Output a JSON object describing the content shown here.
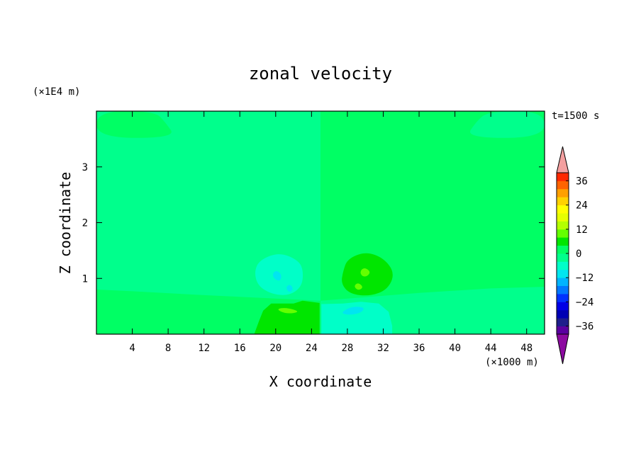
{
  "chart_data": {
    "type": "heatmap",
    "title": "zonal velocity",
    "xlabel": "X coordinate",
    "ylabel": "Z coordinate",
    "x_unit": "(×1000 m)",
    "y_unit": "(×1E4 m)",
    "time_label": "t=1500 s",
    "xlim": [
      0,
      50
    ],
    "ylim": [
      0,
      4
    ],
    "x_ticks": [
      4,
      8,
      12,
      16,
      20,
      24,
      28,
      32,
      36,
      40,
      44,
      48
    ],
    "y_ticks": [
      1,
      2,
      3
    ],
    "colorbar": {
      "tick_values": [
        36,
        24,
        12,
        0,
        -12,
        -24,
        -36
      ],
      "tick_labels": [
        "36",
        "24",
        "12",
        "0",
        "−12",
        "−24",
        "−36"
      ],
      "levels": [
        -40,
        -36,
        -32,
        -28,
        -24,
        -20,
        -16,
        -12,
        -8,
        -4,
        0,
        4,
        8,
        12,
        16,
        20,
        24,
        28,
        32,
        36,
        40
      ],
      "colors": [
        "#5a00a0",
        "#1e1e8c",
        "#0000b4",
        "#0000e6",
        "#0032ff",
        "#0078ff",
        "#00b4ff",
        "#00e6f0",
        "#00ffc8",
        "#00ff8c",
        "#00ff64",
        "#00e600",
        "#64ff00",
        "#b4ff00",
        "#e6ff00",
        "#ffff00",
        "#ffd200",
        "#ffa000",
        "#ff6400",
        "#ff2800"
      ],
      "under_color": "#8c0aa0",
      "over_color": "#f4a0a0"
    },
    "field": [
      {
        "region": "background right half, X 25-50",
        "value_range": [
          0,
          4
        ]
      },
      {
        "region": "background left half, X 0-25",
        "value_range": [
          -4,
          0
        ]
      },
      {
        "region": "lower layer, X 0-25, Z below ~0.8",
        "value_range": [
          0,
          4
        ]
      },
      {
        "region": "lower layer, X 25-50, Z below ~0.8",
        "value_range": [
          -4,
          0
        ]
      },
      {
        "region": "top band, X 0-25, Z above ~3.5",
        "value_range": [
          0,
          4
        ]
      },
      {
        "region": "top band, X 25-50, Z above ~3.5",
        "value_range": [
          -4,
          0
        ]
      },
      {
        "region": "upper-level vortex west, X ~20, Z ~1.1",
        "value_range": [
          -8,
          -4
        ],
        "core": [
          -12,
          -8
        ]
      },
      {
        "region": "upper-level vortex east, X ~30, Z ~1.1",
        "value_range": [
          4,
          8
        ],
        "core": [
          8,
          12
        ]
      },
      {
        "region": "near-surface cell west, X ~21, Z ~0.4",
        "value_range": [
          4,
          8
        ],
        "core": [
          8,
          12
        ]
      },
      {
        "region": "near-surface cell east, X ~29, Z ~0.4",
        "value_range": [
          -8,
          -4
        ],
        "core": [
          -12,
          -8
        ]
      }
    ]
  }
}
